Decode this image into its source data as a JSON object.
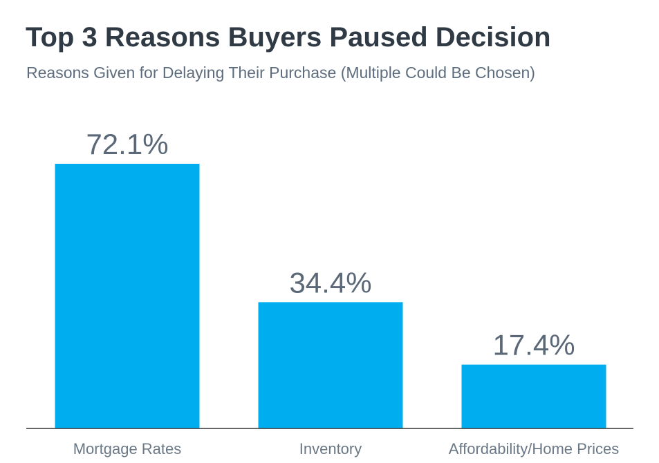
{
  "chart_data": {
    "type": "bar",
    "title": "Top 3 Reasons Buyers Paused Decision",
    "subtitle": "Reasons Given for Delaying Their Purchase (Multiple Could Be Chosen)",
    "categories": [
      "Mortgage Rates",
      "Inventory",
      "Affordability/Home Prices"
    ],
    "values": [
      72.1,
      34.4,
      17.4
    ],
    "value_labels": [
      "72.1%",
      "34.4%",
      "17.4%"
    ],
    "xlabel": "",
    "ylabel": "",
    "ylim": [
      0,
      100
    ],
    "grid": false,
    "legend": "none",
    "colors": {
      "bar": "#00aeef",
      "axis": "#333333",
      "title": "#2f3a45",
      "text": "#5a6877"
    }
  }
}
